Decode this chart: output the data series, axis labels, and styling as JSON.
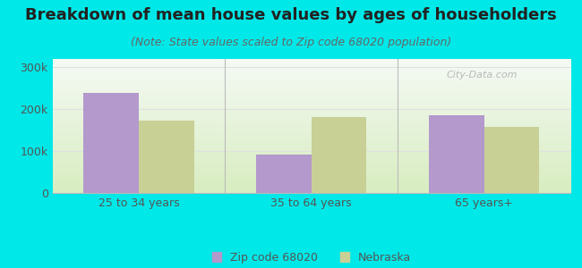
{
  "title": "Breakdown of mean house values by ages of householders",
  "subtitle": "(Note: State values scaled to Zip code 68020 population)",
  "categories": [
    "25 to 34 years",
    "35 to 64 years",
    "65 years+"
  ],
  "zip_values": [
    238000,
    92000,
    185000
  ],
  "state_values": [
    173000,
    181000,
    157000
  ],
  "zip_color": "#b399cc",
  "state_color": "#c8d096",
  "background_color": "#00e8e8",
  "plot_bg_top": "#f5faf5",
  "plot_bg_bottom": "#d8edc0",
  "ylim": [
    0,
    320000
  ],
  "yticks": [
    0,
    100000,
    200000,
    300000
  ],
  "ytick_labels": [
    "0",
    "100k",
    "200k",
    "300k"
  ],
  "legend_zip_label": "Zip code 68020",
  "legend_state_label": "Nebraska",
  "bar_width": 0.32,
  "title_fontsize": 13,
  "subtitle_fontsize": 9,
  "tick_fontsize": 9,
  "legend_fontsize": 9,
  "divider_color": "#bbbbbb",
  "grid_color": "#e0e0e0",
  "tick_color": "#555555"
}
